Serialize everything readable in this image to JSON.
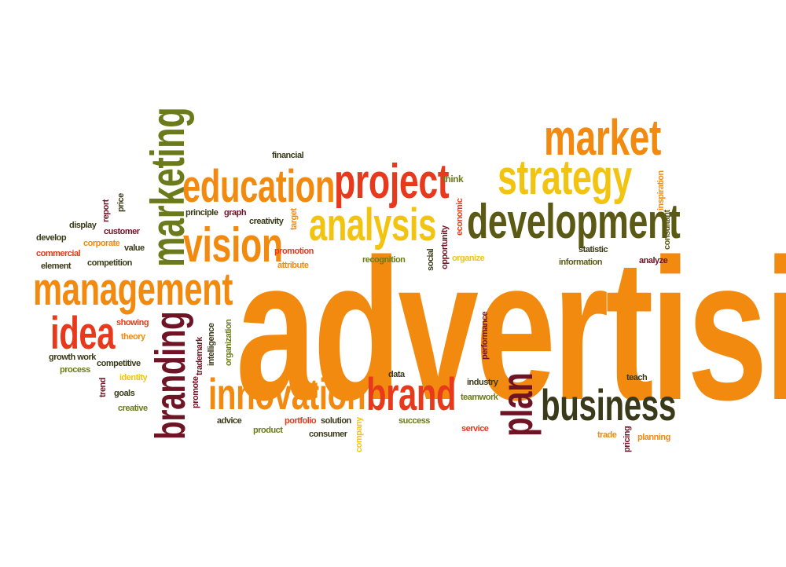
{
  "colors": {
    "orange": "#f28a10",
    "red": "#e8391c",
    "olive": "#5a5a14",
    "yellow": "#f2c30f",
    "maroon": "#6e1425",
    "green": "#6b7a1a",
    "darkgray": "#3a3a1a"
  },
  "words": {
    "advertising": "advertising",
    "management": "management",
    "marketing": "marketing",
    "education": "education",
    "project": "project",
    "market": "market",
    "strategy": "strategy",
    "development": "development",
    "analysis": "analysis",
    "vision": "vision",
    "idea": "idea",
    "branding": "branding",
    "innovation": "innovation",
    "brand": "brand",
    "plan": "plan",
    "business": "business",
    "financial": "financial",
    "think": "think",
    "inspiration": "inspiration",
    "consultant": "consultant",
    "report": "report",
    "price": "price",
    "display": "display",
    "customer": "customer",
    "develop": "develop",
    "corporate": "corporate",
    "value": "value",
    "commercial": "commercial",
    "element": "element",
    "competition": "competition",
    "principle": "principle",
    "graph": "graph",
    "creativity": "creativity",
    "target": "target",
    "economic": "economic",
    "opportunity": "opportunity",
    "social": "social",
    "recognition": "recognition",
    "promotion": "promotion",
    "attribute": "attribute",
    "organize": "organize",
    "statistic": "statistic",
    "information": "information",
    "analyze": "analyze",
    "showing": "showing",
    "theory": "theory",
    "intelligence": "intelligence",
    "organization": "organization",
    "trademark": "trademark",
    "performance": "performance",
    "growth_work": "growth work",
    "competitive": "competitive",
    "process": "process",
    "identity": "identity",
    "goals": "goals",
    "trend": "trend",
    "creative": "creative",
    "promote": "promote",
    "advice": "advice",
    "product": "product",
    "portfolio": "portfolio",
    "solution": "solution",
    "consumer": "consumer",
    "company": "company",
    "data": "data",
    "success": "success",
    "industry": "industry",
    "teamwork": "teamwork",
    "service": "service",
    "teach": "teach",
    "trade": "trade",
    "pricing": "pricing",
    "planning": "planning"
  }
}
